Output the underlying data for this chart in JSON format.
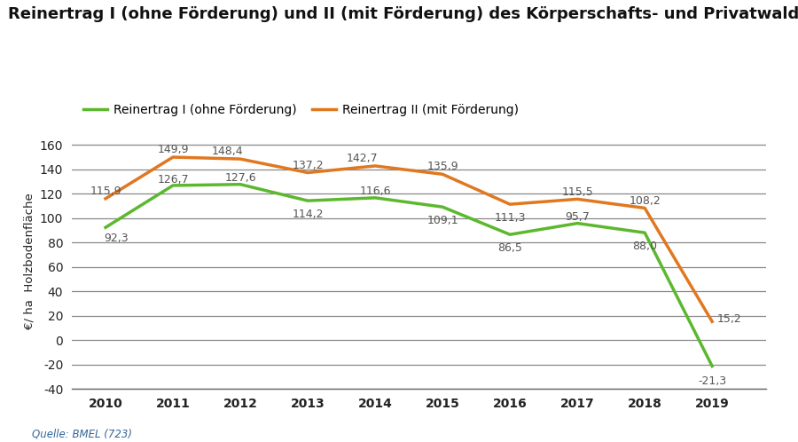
{
  "title": "Reinertrag I (ohne Förderung) und II (mit Förderung) des Körperschafts- und Privatwaldes",
  "ylabel": "€/ ha  Holzbodenfläche",
  "source": "Quelle: BMEL (723)",
  "years": [
    2010,
    2011,
    2012,
    2013,
    2014,
    2015,
    2016,
    2017,
    2018,
    2019
  ],
  "reinertrag1": [
    92.3,
    126.7,
    127.6,
    114.2,
    116.6,
    109.1,
    86.5,
    95.7,
    88.0,
    -21.3
  ],
  "reinertrag2": [
    115.9,
    149.9,
    148.4,
    137.2,
    142.7,
    135.9,
    111.3,
    115.5,
    108.2,
    15.2
  ],
  "color1": "#5cb82e",
  "color2": "#e07820",
  "legend1": "Reinertrag I (ohne Förderung)",
  "legend2": "Reinertrag II (mit Förderung)",
  "ylim": [
    -40,
    170
  ],
  "yticks": [
    -40,
    -20,
    0,
    20,
    40,
    60,
    80,
    100,
    120,
    140,
    160
  ],
  "background_color": "#ffffff",
  "grid_color": "#888888",
  "linewidth": 2.5,
  "title_fontsize": 13,
  "tick_fontsize": 10,
  "annotation_fontsize": 9,
  "legend_fontsize": 10,
  "ylabel_fontsize": 9.5
}
